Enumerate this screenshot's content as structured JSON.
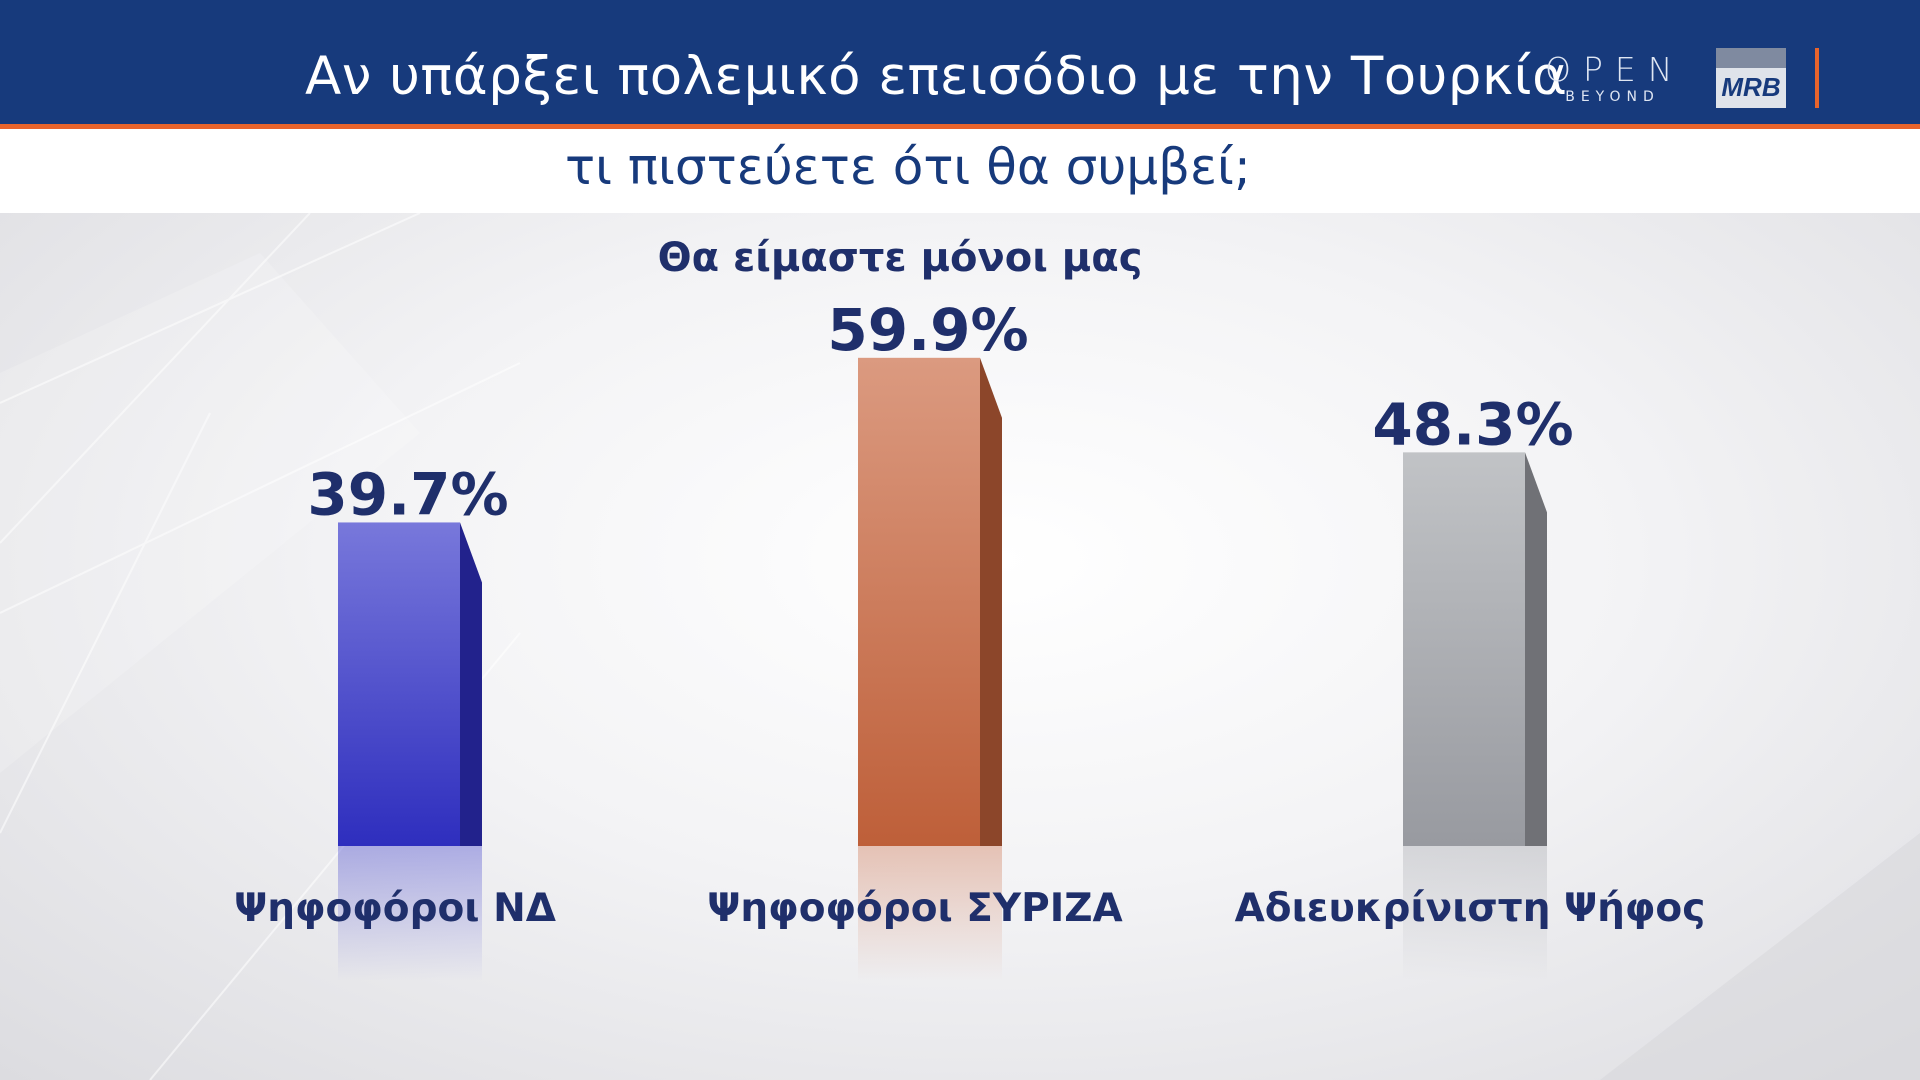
{
  "header": {
    "title": "Αν υπάρξει πολεμικό επεισόδιο με την Τουρκία",
    "subtitle": "τι πιστεύετε ότι θα συμβεί;",
    "logo_open": "OPEN",
    "logo_open_sub": "BEYOND",
    "logo_mrb": "MRB"
  },
  "colors": {
    "header_bg": "#173a7c",
    "accent": "#e8642c",
    "label_text": "#1f2f6b"
  },
  "chart_data": {
    "type": "bar",
    "title": "Θα είμαστε μόνοι μας",
    "categories": [
      "Ψηφοφόροι ΝΔ",
      "Ψηφοφόροι ΣΥΡΙΖΑ",
      "Αδιευκρίνιστη Ψήφος"
    ],
    "values": [
      39.7,
      59.9,
      48.3
    ],
    "value_labels": [
      "39.7%",
      "59.9%",
      "48.3%"
    ],
    "bar_colors": [
      "#3030c8",
      "#c8643c",
      "#a0a2a8"
    ],
    "grid": false,
    "legend": "none"
  }
}
